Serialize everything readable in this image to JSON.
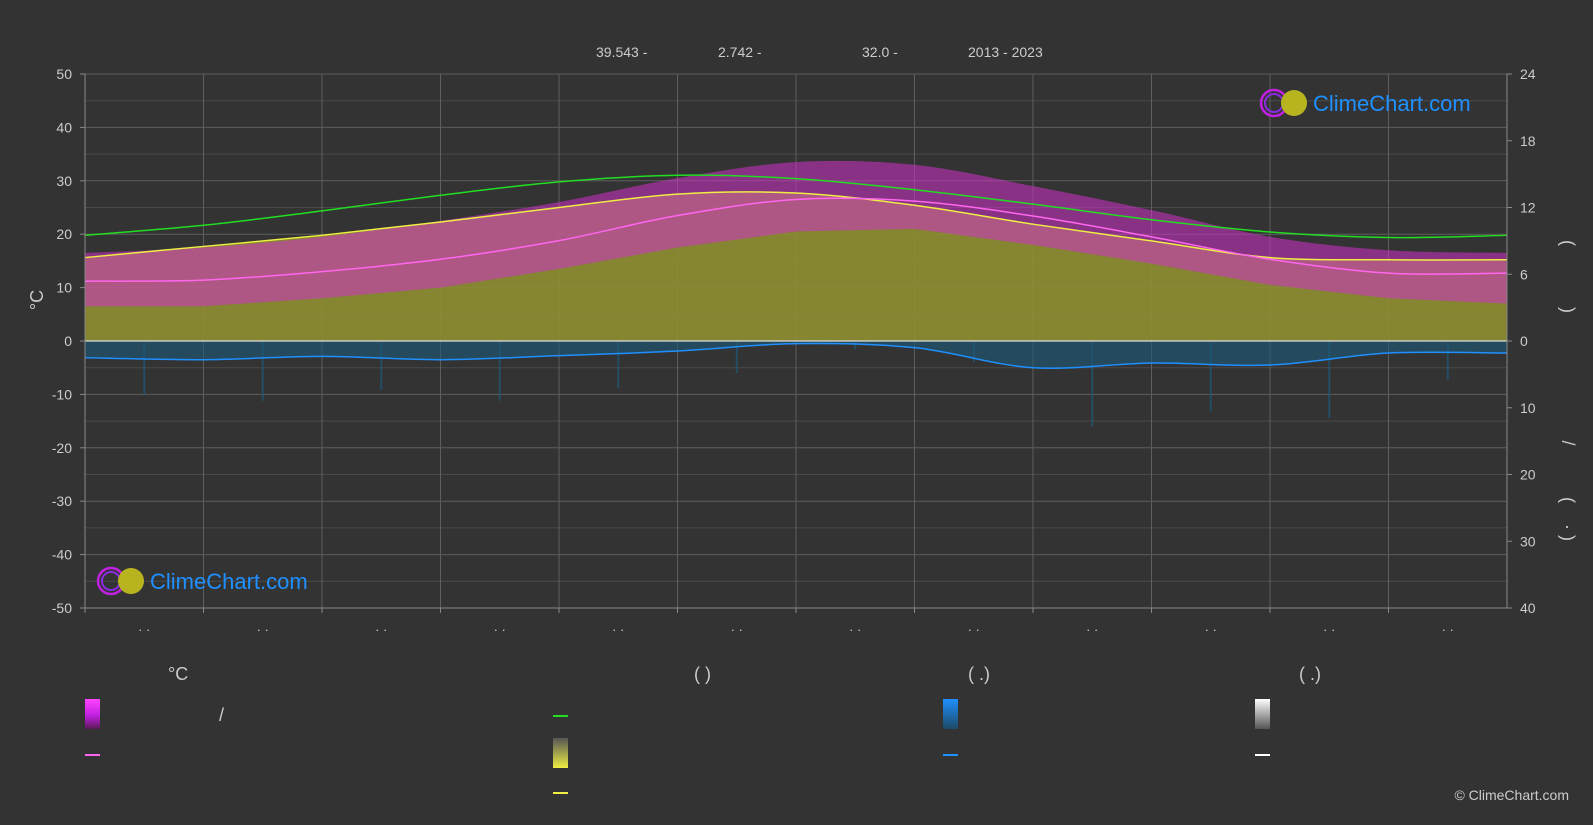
{
  "header": {
    "latitude": "39.543 -",
    "longitude": "2.742 -",
    "elevation": "32.0 -",
    "years": "2013 - 2023"
  },
  "logo": {
    "brand": "ClimeChart.com"
  },
  "copyright": "© ClimeChart.com",
  "legend": {
    "col1": {
      "heading": "°C",
      "item1": "/"
    },
    "col2": {
      "heading": "(          )"
    },
    "col3": {
      "heading": "(   .)"
    },
    "col4": {
      "heading": "(   .)"
    }
  },
  "colors": {
    "background": "#333333",
    "grid": "#5e5e5e",
    "daylight": "#22dd22",
    "sunshine": "#eeee44",
    "sunshine_fill": "#8e8e32",
    "temp_range": "#d030c8",
    "mean_temp": "#ff66ee",
    "rain": "#1e90ff",
    "rain_fill": "#1d5a7a",
    "snow": "#ffffff"
  },
  "chart_data": {
    "type": "line",
    "title": "",
    "yleft": {
      "label": "°C",
      "lim": [
        -50,
        50
      ],
      "ticks": [
        "50",
        "40",
        "30",
        "20",
        "10",
        "0",
        "-10",
        "-20",
        "-30",
        "-40",
        "-50"
      ]
    },
    "yright_top": {
      "lim": [
        0,
        24
      ],
      "ticks": [
        "24",
        "18",
        "12",
        "6",
        "0"
      ]
    },
    "yright_bottom": {
      "lim": [
        0,
        40
      ],
      "ticks": [
        "0",
        "10",
        "20",
        "30",
        "40"
      ]
    },
    "right_axis_glyphs": [
      "(",
      ")",
      "/",
      "(",
      "·",
      ")"
    ],
    "months": [
      "· ·",
      "· ·",
      "· ·",
      "· ·",
      "· ·",
      "· ·",
      "· ·",
      "· ·",
      "· ·",
      "· ·",
      "· ·",
      "· ·"
    ],
    "x": [
      0,
      1,
      2,
      3,
      4,
      5,
      6,
      7,
      8,
      9,
      10,
      11,
      12
    ],
    "series": [
      {
        "key": "daylight",
        "axis": "hours",
        "values": [
          9.5,
          10.4,
          11.7,
          13.1,
          14.3,
          14.9,
          14.6,
          13.6,
          12.3,
          10.9,
          9.8,
          9.3,
          9.5
        ]
      },
      {
        "key": "sunshine",
        "axis": "hours",
        "values": [
          7.5,
          8.5,
          9.5,
          10.7,
          12.0,
          13.2,
          13.3,
          12.2,
          10.5,
          9.0,
          7.5,
          7.3,
          7.3
        ]
      },
      {
        "key": "mean_temp",
        "axis": "temp",
        "values": [
          11.2,
          11.4,
          13.0,
          15.3,
          18.8,
          23.5,
          26.5,
          26.2,
          23.4,
          19.5,
          15.3,
          12.7,
          12.7
        ]
      },
      {
        "key": "temp_max",
        "axis": "temp",
        "values": [
          16.5,
          17.5,
          19.5,
          22.5,
          26.0,
          30.5,
          33.5,
          33.0,
          29.0,
          24.5,
          19.5,
          17.0,
          16.5
        ]
      },
      {
        "key": "temp_min",
        "axis": "temp",
        "values": [
          6.5,
          6.5,
          8.0,
          10.0,
          13.5,
          17.5,
          20.5,
          21.0,
          18.0,
          14.5,
          10.5,
          8.0,
          7.0
        ]
      },
      {
        "key": "rain",
        "axis": "precip",
        "values": [
          2.5,
          2.8,
          2.3,
          2.8,
          2.2,
          1.5,
          0.4,
          1.0,
          4.0,
          3.3,
          3.6,
          1.8,
          1.8
        ]
      }
    ]
  }
}
